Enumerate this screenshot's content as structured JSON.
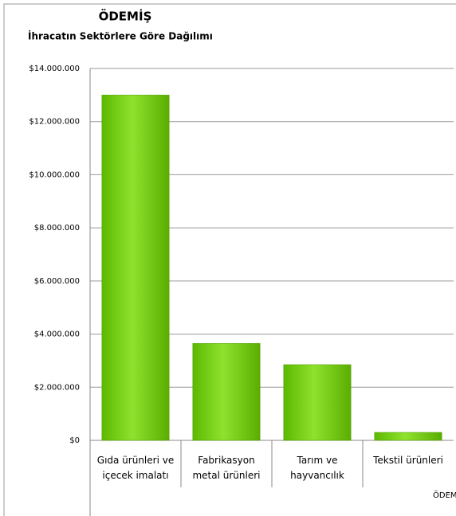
{
  "chart_data": {
    "type": "bar",
    "title": "ÖDEMİŞ",
    "subtitle": "İhracatın Sektörlere Göre Dağılımı",
    "categories": [
      [
        "Gıda ürünleri ve",
        "içecek imalatı"
      ],
      [
        "Fabrikasyon",
        "metal ürünleri"
      ],
      [
        "Tarım ve",
        "hayvancılık"
      ],
      [
        "Tekstil ürünleri"
      ]
    ],
    "series": [
      {
        "name": "ÖDEMİŞ",
        "color": "#7ed321",
        "values": [
          13000000,
          3650000,
          2850000,
          300000
        ]
      }
    ],
    "ylim": [
      0,
      14000000
    ],
    "yticks": [
      {
        "value": 0,
        "label": "$0"
      },
      {
        "value": 2000000,
        "label": "$2.000.000"
      },
      {
        "value": 4000000,
        "label": "$4.000.000"
      },
      {
        "value": 6000000,
        "label": "$6.000.000"
      },
      {
        "value": 8000000,
        "label": "$8.000.000"
      },
      {
        "value": 10000000,
        "label": "$10.000.000"
      },
      {
        "value": 12000000,
        "label": "$12.000.000"
      },
      {
        "value": 14000000,
        "label": "$14.000.000"
      }
    ],
    "grid": true
  }
}
